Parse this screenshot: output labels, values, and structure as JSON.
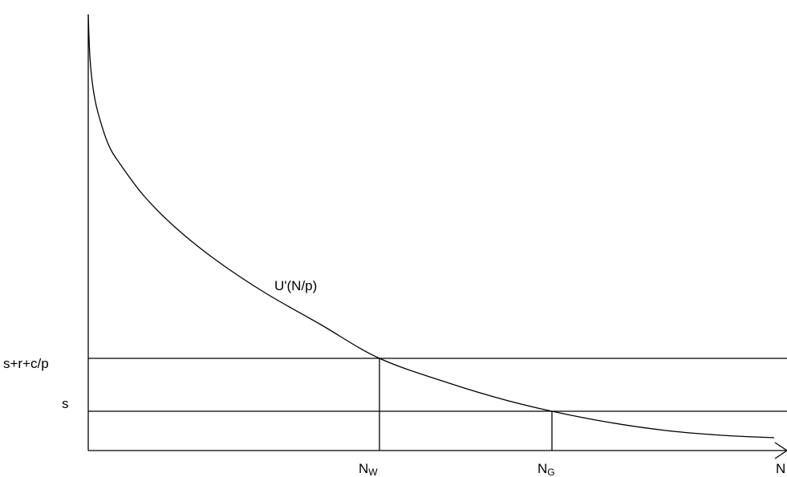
{
  "diagram": {
    "y_labels": {
      "upper": "s+r+c/p",
      "lower": "s"
    },
    "x_labels": {
      "nw_main": "N",
      "nw_sub": "W",
      "ng_main": "N",
      "ng_sub": "G",
      "axis_end": "N"
    },
    "curve_label": "U'(N/p)",
    "colors": {
      "line": "#000000",
      "background": "#ffffff"
    }
  }
}
